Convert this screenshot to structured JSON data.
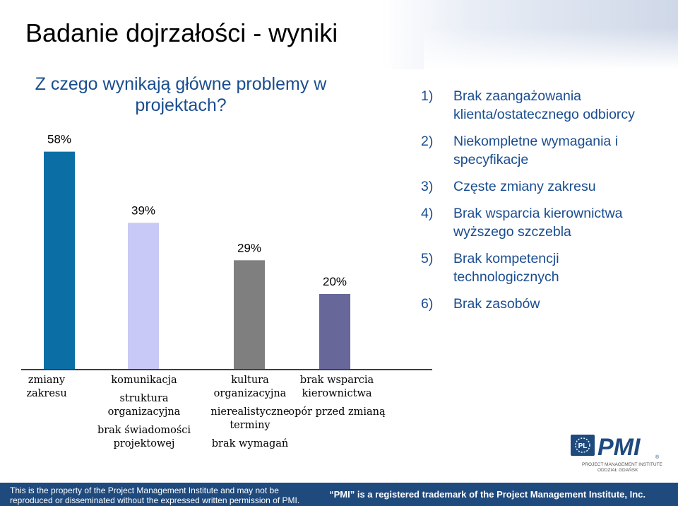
{
  "slide": {
    "title": "Badanie dojrzałości - wyniki",
    "question": "Z czego wynikają główne problemy w projektach?"
  },
  "chart_data": {
    "type": "bar",
    "title": "Z czego wynikają główne problemy w projektach?",
    "values": [
      58,
      39,
      29,
      20
    ],
    "value_labels": [
      "58%",
      "39%",
      "29%",
      "20%"
    ],
    "colors": [
      "#0b6fa6",
      "#c9c9f7",
      "#7f7f7f",
      "#67679a"
    ],
    "categories": [
      [
        "zmiany zakresu"
      ],
      [
        "komunikacja",
        "struktura organizacyjna",
        "brak świadomości projektowej"
      ],
      [
        "kultura organizacyjna",
        "nierealistyczne terminy",
        "brak wymagań"
      ],
      [
        "brak wsparcia kierownictwa",
        "opór przed zmianą"
      ]
    ],
    "ylim": [
      0,
      60
    ],
    "grid": false,
    "legend": "none"
  },
  "reasons": [
    {
      "num": "1)",
      "lines": [
        "Brak zaangażowania",
        "klienta/ostatecznego odbiorcy"
      ]
    },
    {
      "num": "2)",
      "lines": [
        "Niekompletne wymagania i",
        "specyfikacje"
      ]
    },
    {
      "num": "3)",
      "lines": [
        "Częste zmiany zakresu"
      ]
    },
    {
      "num": "4)",
      "lines": [
        "Brak wsparcia kierownictwa",
        "wyższego szczebla"
      ]
    },
    {
      "num": "5)",
      "lines": [
        "Brak kompetencji",
        "technologicznych"
      ]
    },
    {
      "num": "6)",
      "lines": [
        "Brak zasobów"
      ]
    }
  ],
  "logo": {
    "brand": "PMI",
    "line1": "PROJECT MANAGEMENT INSTITUTE",
    "line2": "ODDZIAŁ GDAŃSK",
    "badge": "PL",
    "brand_color": "#1f4a7d"
  },
  "footer": {
    "left_line1": "This is the property of the Project Management Institute and may not be",
    "left_line2": "reproduced or disseminated without the expressed written permission of PMI.",
    "right": "“PMI” is a registered trademark of the Project Management Institute, Inc."
  }
}
